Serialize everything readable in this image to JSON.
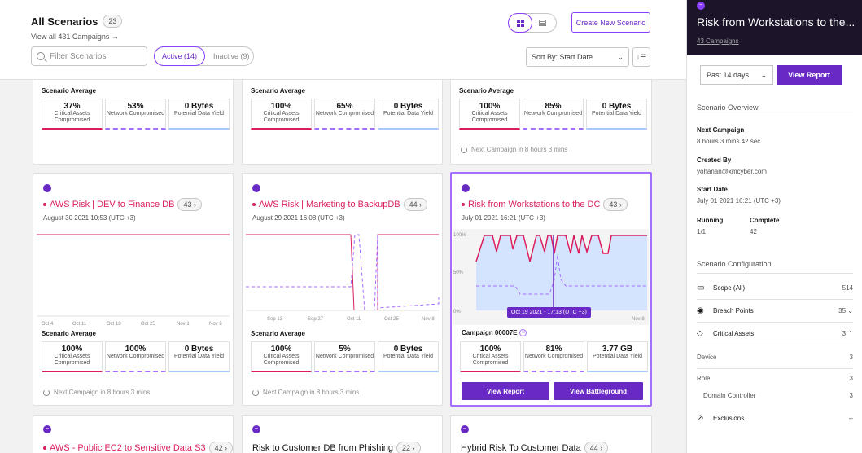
{
  "header": {
    "title": "All Scenarios",
    "count": "23",
    "view_all": "View all 431 Campaigns →",
    "search_placeholder": "Filter Scenarios",
    "tab_active": "Active (14)",
    "tab_inactive": "Inactive (9)",
    "create_button": "Create New Scenario",
    "sort_label": "Sort By: Start Date",
    "sort_caret": "⌄"
  },
  "stat_labels": {
    "critical": "Critical Assets Compromised",
    "network": "Network Compromised",
    "yield": "Potential Data Yield"
  },
  "common": {
    "scenario_average": "Scenario Average",
    "next_campaign": "Next Campaign in 8 hours 3 mins"
  },
  "cards_top": [
    {
      "critical": "37%",
      "network": "53%",
      "yield": "0 Bytes"
    },
    {
      "critical": "100%",
      "network": "65%",
      "yield": "0 Bytes"
    },
    {
      "critical": "100%",
      "network": "85%",
      "yield": "0 Bytes"
    }
  ],
  "cards_mid": [
    {
      "name": "AWS Risk | DEV to Finance DB",
      "count": "43 ›",
      "date": "August 30 2021 10:53 (UTC +3)",
      "x_ticks": [
        "Oct 4",
        "Oct 11",
        "Oct 18",
        "Oct 25",
        "Nov 1",
        "Nov 8"
      ],
      "critical": "100%",
      "network": "100%",
      "yield": "0 Bytes"
    },
    {
      "name": "AWS Risk | Marketing to BackupDB",
      "count": "44 ›",
      "date": "August 29 2021 16:08 (UTC +3)",
      "x_ticks": [
        "Sep 13",
        "Sep 27",
        "Oct 11",
        "Oct 25",
        "Nov 8"
      ],
      "critical": "100%",
      "network": "5%",
      "yield": "0 Bytes"
    },
    {
      "name": "Risk from Workstations to the DC",
      "count": "43 ›",
      "date": "July 01 2021 16:21 (UTC +3)",
      "y_ticks": [
        "100%",
        "50%",
        "0%"
      ],
      "x_tick_right": "Nov 8",
      "tooltip": "Oct 19 2021 - 17:13 (UTC +3)",
      "campaign": "Campaign 00007E",
      "critical": "100%",
      "network": "81%",
      "yield": "3.77 GB",
      "btn_report": "View Report",
      "btn_battle": "View Battleground"
    }
  ],
  "cards_bottom": [
    {
      "name": "AWS - Public EC2 to Sensitive Data S3",
      "count": "42 ›"
    },
    {
      "name": "Risk to Customer DB from Phishing",
      "count": "22 ›"
    },
    {
      "name": "Hybrid Risk To Customer Data",
      "count": "44 ›"
    }
  ],
  "panel": {
    "title": "Risk from Workstations to the...",
    "campaigns": "43 Campaigns",
    "range": "Past 14 days",
    "view_report": "View Report",
    "overview": "Scenario Overview",
    "next_label": "Next Campaign",
    "next_value": "8 hours 3 mins 42 sec",
    "created_label": "Created By",
    "created_value": "yohanan@xmcyber.com",
    "start_label": "Start Date",
    "start_value": "July 01 2021 16:21 (UTC +3)",
    "running_label": "Running",
    "running_value": "1/1",
    "complete_label": "Complete",
    "complete_value": "42",
    "config": "Scenario Configuration",
    "scope_label": "Scope (All)",
    "scope_value": "514",
    "breach_label": "Breach Points",
    "breach_value": "35 ⌄",
    "assets_label": "Critical Assets",
    "assets_value": "3 ⌃",
    "device_label": "Device",
    "device_value": "3",
    "role_label": "Role",
    "role_value": "3",
    "dc_label": "Domain Controller",
    "dc_value": "3",
    "excl_label": "Exclusions",
    "excl_value": "--"
  }
}
